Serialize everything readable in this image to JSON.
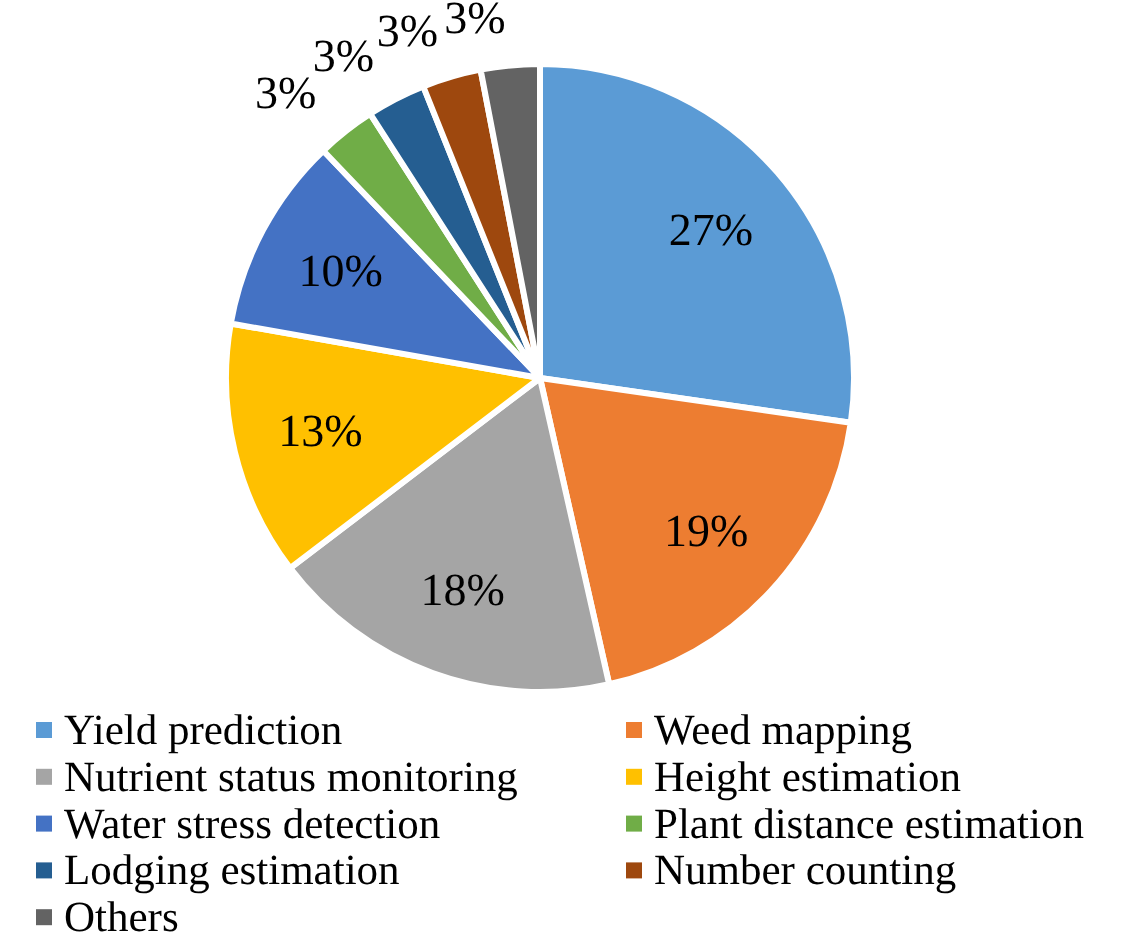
{
  "chart_data": {
    "type": "pie",
    "categories": [
      "Yield prediction",
      "Weed mapping",
      "Nutrient status monitoring",
      "Height estimation",
      "Water stress detection",
      "Plant distance estimation",
      "Lodging estimation",
      "Number counting",
      "Others"
    ],
    "values": [
      27,
      19,
      18,
      13,
      10,
      3,
      3,
      3,
      3
    ],
    "colors": [
      "#5b9bd5",
      "#ed7d31",
      "#a5a5a5",
      "#ffc000",
      "#4472c4",
      "#70ad47",
      "#255e91",
      "#9e480e",
      "#636363"
    ],
    "value_labels": [
      "27%",
      "19%",
      "18%",
      "13%",
      "10%",
      "3%",
      "3%",
      "3%",
      "3%"
    ],
    "legend": "bottom"
  }
}
